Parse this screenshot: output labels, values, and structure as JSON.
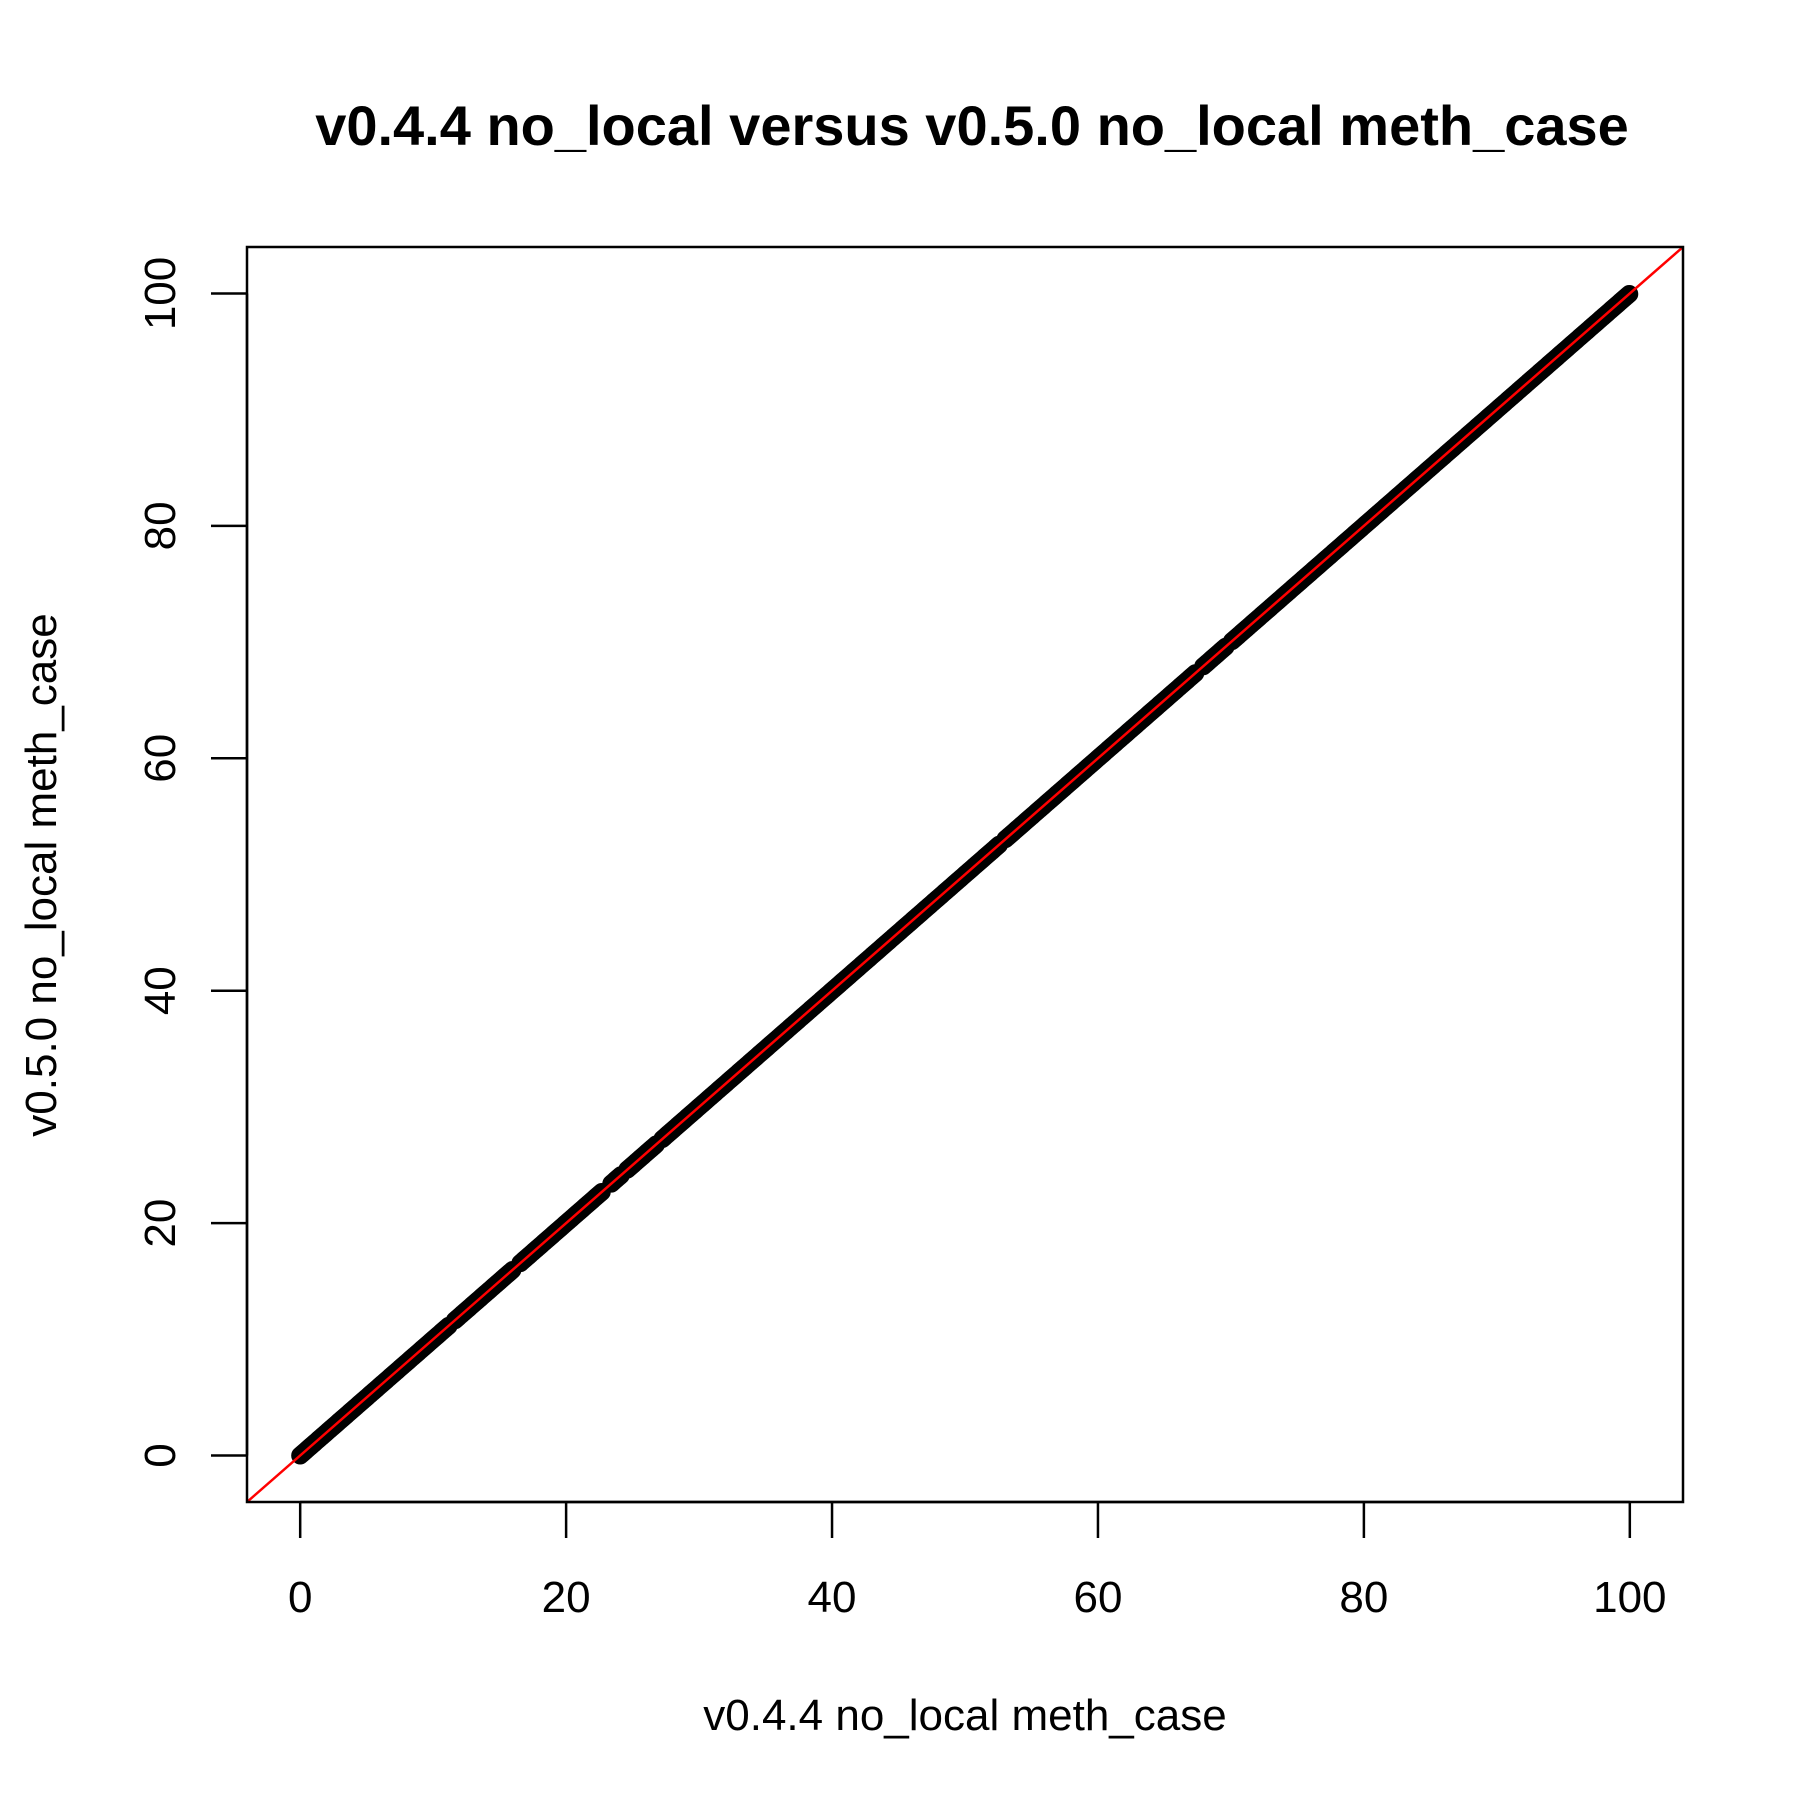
{
  "chart_data": {
    "type": "scatter",
    "title": "v0.4.4 no_local versus v0.5.0 no_local meth_case",
    "xlabel": "v0.4.4 no_local meth_case",
    "ylabel": "v0.5.0 no_local meth_case",
    "xlim": [
      -4,
      104
    ],
    "ylim": [
      -4,
      104
    ],
    "x_ticks": [
      0,
      20,
      40,
      60,
      80,
      100
    ],
    "y_ticks": [
      0,
      20,
      40,
      60,
      80,
      100
    ],
    "x_tick_labels": [
      "0",
      "20",
      "40",
      "60",
      "80",
      "100"
    ],
    "y_tick_labels": [
      "0",
      "20",
      "40",
      "60",
      "80",
      "100"
    ],
    "grid": false,
    "legend": "none",
    "reference_line": {
      "type": "identity",
      "slope": 1,
      "intercept": 0,
      "color": "#ff0000"
    },
    "point_color": "#000000",
    "series": [
      {
        "x_range": [
          0,
          100
        ],
        "relation": "y = x",
        "gaps": [
          [
            11.2,
            11.6
          ],
          [
            16.0,
            16.5
          ],
          [
            22.8,
            23.3
          ],
          [
            24.2,
            24.6
          ],
          [
            26.8,
            27.2
          ],
          [
            52.6,
            53.0
          ],
          [
            67.4,
            67.8
          ],
          [
            69.6,
            70.0
          ]
        ]
      }
    ]
  }
}
